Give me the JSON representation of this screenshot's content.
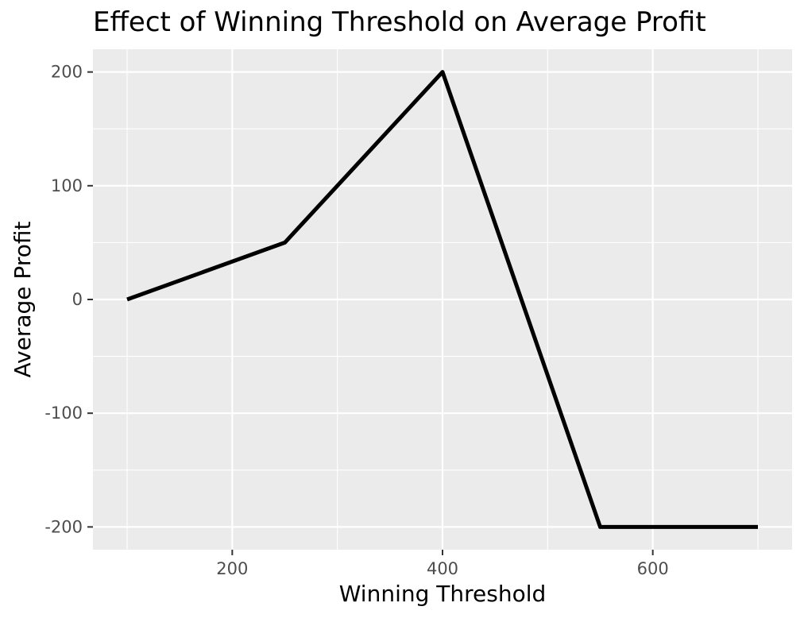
{
  "chart_data": {
    "type": "line",
    "title": "Effect of Winning Threshold on Average Profit",
    "xlabel": "Winning Threshold",
    "ylabel": "Average Profit",
    "x": [
      100,
      250,
      400,
      550,
      700
    ],
    "series": [
      {
        "values": [
          0,
          50,
          200,
          -200,
          -200
        ],
        "color": "#000000"
      }
    ],
    "xlim": [
      67.5,
      732.5
    ],
    "ylim": [
      -220,
      220
    ],
    "x_ticks": [
      200,
      400,
      600
    ],
    "x_tick_labels": [
      "200",
      "400",
      "600"
    ],
    "x_minor_ticks": [
      100,
      300,
      500,
      700
    ],
    "y_ticks": [
      -200,
      -100,
      0,
      100,
      200
    ],
    "y_tick_labels": [
      "-200",
      "-100",
      "0",
      "100",
      "200"
    ],
    "y_minor_ticks": [
      -150,
      -50,
      50,
      150
    ],
    "grid": true,
    "panel_background": "#ebebeb",
    "grid_color": "#ffffff"
  }
}
